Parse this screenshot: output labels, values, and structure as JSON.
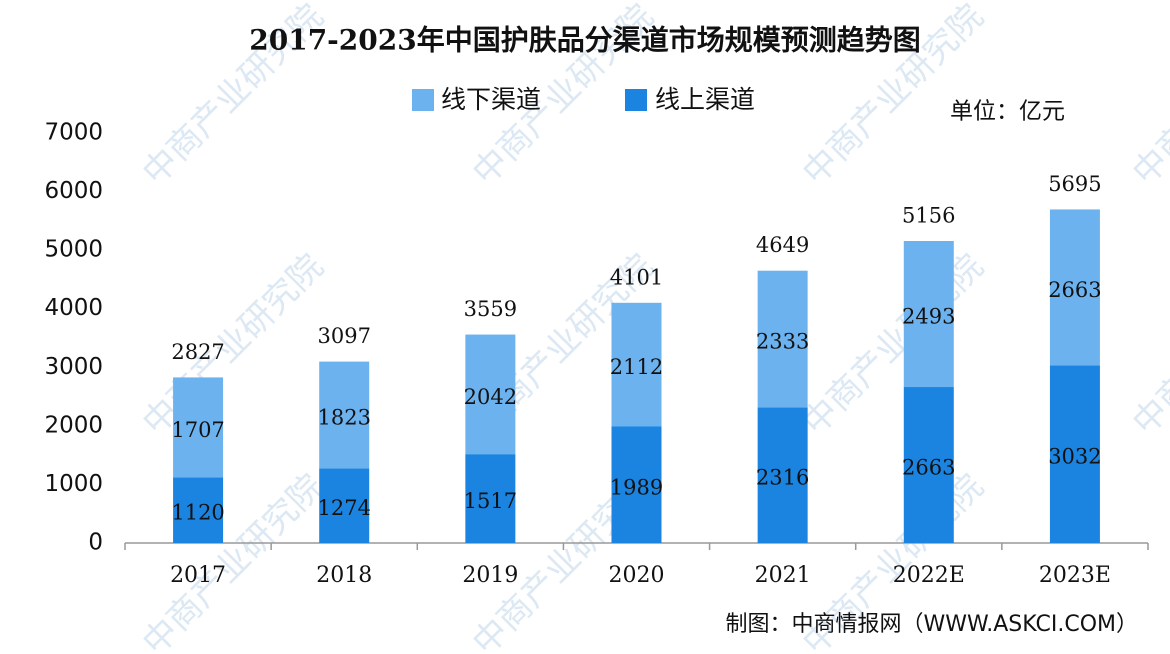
{
  "chart_data": {
    "type": "stacked_bar",
    "title": "2017-2023年中国护肤品分渠道市场规模预测趋势图",
    "unit": "单位：亿元",
    "source": "制图：中商情报网（WWW.ASKCI.COM）",
    "watermark": "中商产业研究院",
    "categories": [
      "2017",
      "2018",
      "2019",
      "2020",
      "2021",
      "2022E",
      "2023E"
    ],
    "series": [
      {
        "name": "线上渠道",
        "color": "#1a84e0",
        "values": [
          1120,
          1274,
          1517,
          1989,
          2316,
          2663,
          3032
        ]
      },
      {
        "name": "线下渠道",
        "color": "#6cb2ef",
        "values": [
          1707,
          1823,
          2042,
          2112,
          2333,
          2493,
          2663
        ]
      }
    ],
    "totals": [
      2827,
      3097,
      3559,
      4101,
      4649,
      5156,
      5695
    ],
    "ylim": [
      0,
      7000
    ],
    "yticks": [
      0,
      1000,
      2000,
      3000,
      4000,
      5000,
      6000,
      7000
    ],
    "grid": false
  }
}
